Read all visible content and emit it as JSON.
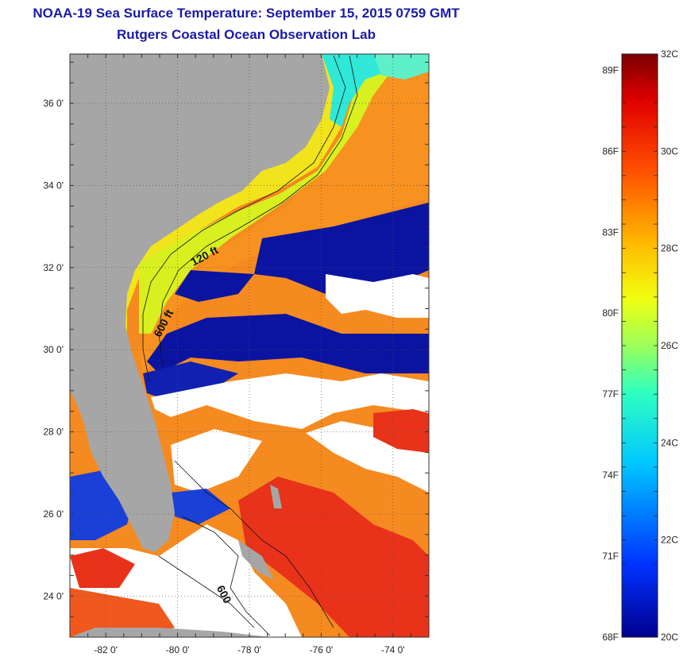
{
  "header": {
    "title_line1": "NOAA-19 Sea Surface Temperature:  September 15, 2015 0759 GMT",
    "title_line2": "Rutgers Coastal Ocean Observation Lab"
  },
  "map": {
    "lon_range": [
      -83,
      -73
    ],
    "lat_range": [
      23,
      37.2
    ],
    "x_ticks": [
      {
        "value": -82,
        "label": "-82 0'"
      },
      {
        "value": -80,
        "label": "-80 0'"
      },
      {
        "value": -78,
        "label": "-78 0'"
      },
      {
        "value": -76,
        "label": "-76 0'"
      },
      {
        "value": -74,
        "label": "-74 0'"
      }
    ],
    "y_ticks": [
      {
        "value": 36,
        "label": "36 0'"
      },
      {
        "value": 34,
        "label": "34 0'"
      },
      {
        "value": 32,
        "label": "32 0'"
      },
      {
        "value": 30,
        "label": "30 0'"
      },
      {
        "value": 28,
        "label": "28 0'"
      },
      {
        "value": 26,
        "label": "26 0'"
      },
      {
        "value": 24,
        "label": "24 0'"
      }
    ],
    "contour_labels": [
      {
        "text": "120 ft",
        "lon": -79.2,
        "lat": 32.2,
        "rotate": -28
      },
      {
        "text": "600 ft",
        "lon": -80.3,
        "lat": 30.6,
        "rotate": -62
      },
      {
        "text": "600",
        "lon": -78.8,
        "lat": 24.0,
        "rotate": 62
      }
    ],
    "colors": {
      "land": "#a6a6a6",
      "cloud": "#ffffff",
      "cold": "#0a14a0"
    }
  },
  "colorbar": {
    "celsius_range": [
      20,
      32
    ],
    "fahrenheit_ticks": [
      {
        "value": 89,
        "label": "89F"
      },
      {
        "value": 86,
        "label": "86F"
      },
      {
        "value": 83,
        "label": "83F"
      },
      {
        "value": 80,
        "label": "80F"
      },
      {
        "value": 77,
        "label": "77F"
      },
      {
        "value": 74,
        "label": "74F"
      },
      {
        "value": 71,
        "label": "71F"
      },
      {
        "value": 68,
        "label": "68F"
      }
    ],
    "celsius_ticks": [
      {
        "value": 32,
        "label": "32C"
      },
      {
        "value": 30,
        "label": "30C"
      },
      {
        "value": 28,
        "label": "28C"
      },
      {
        "value": 26,
        "label": "26C"
      },
      {
        "value": 24,
        "label": "24C"
      },
      {
        "value": 22,
        "label": "22C"
      },
      {
        "value": 20,
        "label": "20C"
      }
    ]
  }
}
